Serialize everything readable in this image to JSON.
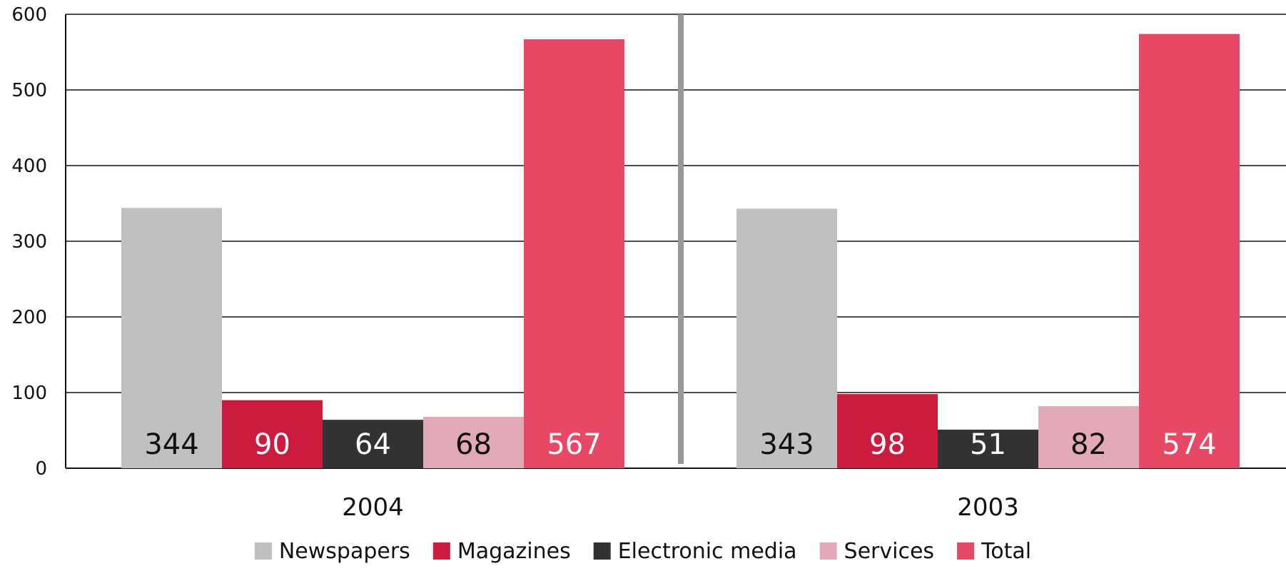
{
  "chart_data": {
    "type": "bar",
    "categories": [
      "2004",
      "2003"
    ],
    "series": [
      {
        "name": "Newspapers",
        "color": "#c0c0c0",
        "label_color": "#111111",
        "values": [
          344,
          343
        ]
      },
      {
        "name": "Magazines",
        "color": "#cb1c3f",
        "label_color": "#ffffff",
        "values": [
          90,
          98
        ]
      },
      {
        "name": "Electronic media",
        "color": "#333333",
        "label_color": "#ffffff",
        "values": [
          64,
          51
        ]
      },
      {
        "name": "Services",
        "color": "#e2aab6",
        "label_color": "#111111",
        "values": [
          68,
          82
        ]
      },
      {
        "name": "Total",
        "color": "#e64865",
        "label_color": "#ffffff",
        "values": [
          567,
          574
        ]
      }
    ],
    "ylim": [
      0,
      600
    ],
    "yticks": [
      0,
      100,
      200,
      300,
      400,
      500,
      600
    ],
    "grid": true,
    "legend": "bottom",
    "title": "",
    "xlabel": "",
    "ylabel": ""
  }
}
